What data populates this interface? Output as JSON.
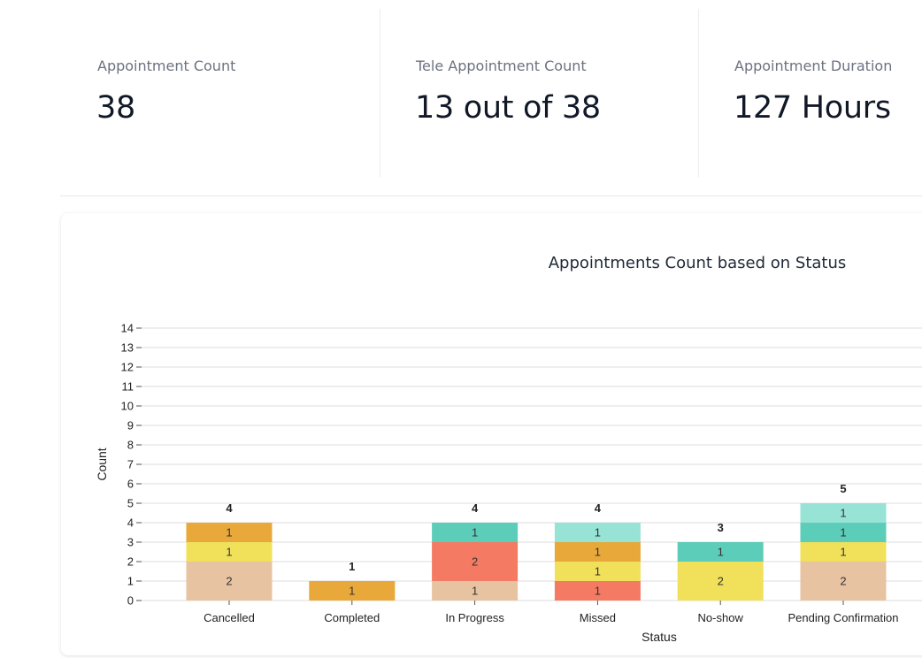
{
  "stats": [
    {
      "label": "Appointment Count",
      "value": "38"
    },
    {
      "label": "Tele Appointment Count",
      "value": "13 out of 38"
    },
    {
      "label": "Appointment Duration",
      "value": "127 Hours"
    }
  ],
  "chart_data": {
    "type": "bar",
    "stacked": true,
    "title": "Appointments Count based on Status",
    "xlabel": "Status",
    "ylabel": "Count",
    "ylim": [
      0,
      14
    ],
    "yticks": [
      "0",
      "1",
      "2",
      "3",
      "4",
      "5",
      "6",
      "7",
      "8",
      "9",
      "10",
      "11",
      "12",
      "13",
      "14"
    ],
    "grid": true,
    "categories": [
      "Cancelled",
      "Completed",
      "In Progress",
      "Missed",
      "No-show",
      "Pending Confirmation"
    ],
    "totals": [
      4,
      1,
      4,
      4,
      3,
      5
    ],
    "series": [
      {
        "color": "#e8c3a1",
        "values": [
          2,
          0,
          1,
          0,
          0,
          2
        ]
      },
      {
        "color": "#f47a63",
        "values": [
          0,
          0,
          2,
          1,
          0,
          0
        ]
      },
      {
        "color": "#f0e05a",
        "values": [
          1,
          0,
          0,
          1,
          2,
          1
        ]
      },
      {
        "color": "#e8a83a",
        "values": [
          1,
          1,
          0,
          1,
          0,
          0
        ]
      },
      {
        "color": "#5ccdb8",
        "values": [
          0,
          0,
          1,
          0,
          1,
          1
        ]
      },
      {
        "color": "#97e3d5",
        "values": [
          0,
          0,
          0,
          1,
          0,
          1
        ]
      }
    ]
  }
}
